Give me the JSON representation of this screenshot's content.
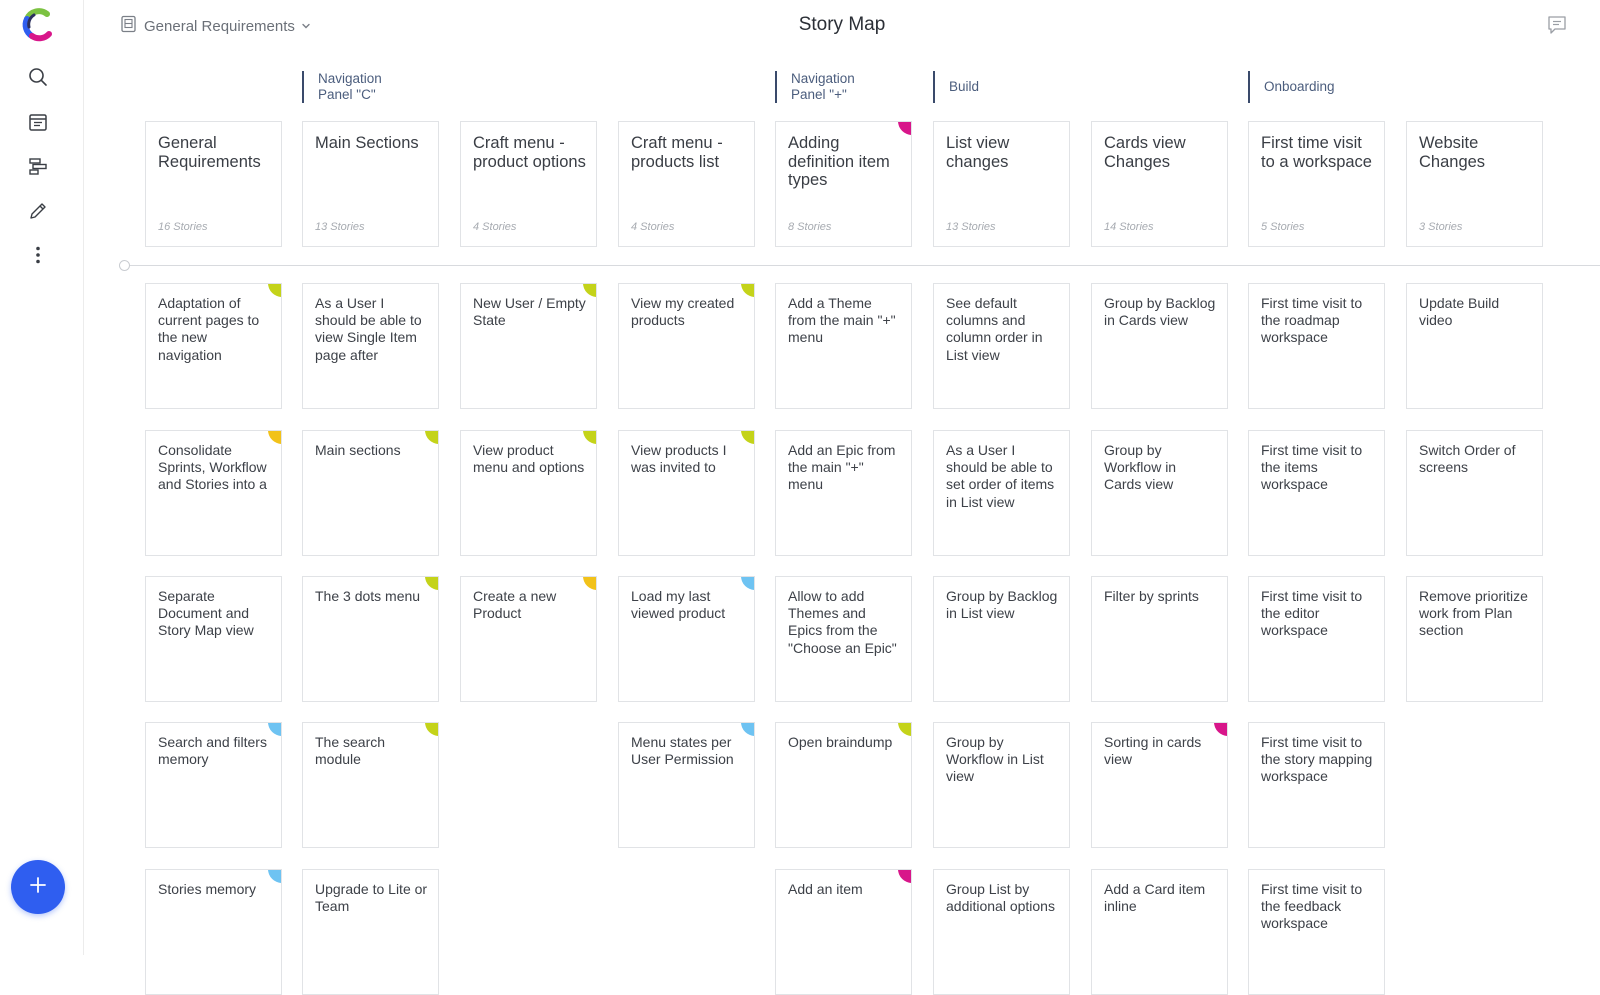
{
  "colors": {
    "yellowgreen": "#c4d31a",
    "yellow": "#f2c21a",
    "blue": "#6ec3f2",
    "magenta": "#d8168a"
  },
  "header": {
    "breadcrumb_label": "General Requirements",
    "title": "Story Map"
  },
  "sidebar": {
    "icons": [
      "search-icon",
      "calendar-icon",
      "roadmap-icon",
      "pencil-icon",
      "more-icon"
    ],
    "fab_icon": "plus-icon"
  },
  "releases": [
    {
      "label": "Navigation\nPanel \"C\""
    },
    {
      "label": "Navigation\nPanel \"+\""
    },
    {
      "label": "Build"
    },
    {
      "label": "Onboarding"
    }
  ],
  "epics": [
    {
      "title": "General Requirements",
      "count": "16 Stories",
      "flag": ""
    },
    {
      "title": "Main Sections",
      "count": "13 Stories",
      "flag": ""
    },
    {
      "title": "Craft menu - product options",
      "count": "4 Stories",
      "flag": ""
    },
    {
      "title": "Craft menu - products list",
      "count": "4 Stories",
      "flag": ""
    },
    {
      "title": "Adding definition item types",
      "count": "8 Stories",
      "flag": "magenta"
    },
    {
      "title": "List view changes",
      "count": "13 Stories",
      "flag": ""
    },
    {
      "title": "Cards view Changes",
      "count": "14 Stories",
      "flag": ""
    },
    {
      "title": "First time visit to a workspace",
      "count": "5 Stories",
      "flag": ""
    },
    {
      "title": "Website Changes",
      "count": "3 Stories",
      "flag": ""
    }
  ],
  "columns": [
    [
      {
        "title": "Adaptation of current pages to the new navigation",
        "flag": "yellowgreen"
      },
      {
        "title": "Consolidate Sprints, Workflow and Stories into a",
        "flag": "yellow"
      },
      {
        "title": "Separate Document and Story Map view",
        "flag": ""
      },
      {
        "title": "Search and filters memory",
        "flag": "blue"
      },
      {
        "title": "Stories memory",
        "flag": "blue"
      }
    ],
    [
      {
        "title": "As a User I should be able to view Single Item page after",
        "flag": ""
      },
      {
        "title": "Main sections",
        "flag": "yellowgreen"
      },
      {
        "title": "The 3 dots menu",
        "flag": "yellowgreen"
      },
      {
        "title": "The search module",
        "flag": "yellowgreen"
      },
      {
        "title": "Upgrade to Lite or Team",
        "flag": ""
      }
    ],
    [
      {
        "title": "New User / Empty State",
        "flag": "yellowgreen"
      },
      {
        "title": "View product menu and options",
        "flag": "yellowgreen"
      },
      {
        "title": "Create a new Product",
        "flag": "yellow"
      }
    ],
    [
      {
        "title": "View my created products",
        "flag": "yellowgreen"
      },
      {
        "title": "View products I was invited to",
        "flag": "yellowgreen"
      },
      {
        "title": "Load my last viewed product",
        "flag": "blue"
      },
      {
        "title": "Menu states per User Permission",
        "flag": "blue"
      }
    ],
    [
      {
        "title": "Add a Theme from the main \"+\" menu",
        "flag": ""
      },
      {
        "title": "Add an Epic from the main \"+\" menu",
        "flag": ""
      },
      {
        "title": "Allow to add Themes and Epics from the \"Choose an Epic\"",
        "flag": ""
      },
      {
        "title": "Open braindump",
        "flag": "yellowgreen"
      },
      {
        "title": "Add an item",
        "flag": "magenta"
      }
    ],
    [
      {
        "title": "See default columns and column order in List view",
        "flag": ""
      },
      {
        "title": "As a User I should be able to set order of items in List view",
        "flag": ""
      },
      {
        "title": "Group by Backlog in List view",
        "flag": ""
      },
      {
        "title": "Group by Workflow in List view",
        "flag": ""
      },
      {
        "title": "Group List by additional options",
        "flag": ""
      }
    ],
    [
      {
        "title": "Group by Backlog in Cards view",
        "flag": ""
      },
      {
        "title": "Group by Workflow in Cards view",
        "flag": ""
      },
      {
        "title": "Filter by sprints",
        "flag": ""
      },
      {
        "title": "Sorting in cards view",
        "flag": "magenta"
      },
      {
        "title": "Add a Card item inline",
        "flag": ""
      }
    ],
    [
      {
        "title": "First time visit to the roadmap workspace",
        "flag": ""
      },
      {
        "title": "First time visit to the items workspace",
        "flag": ""
      },
      {
        "title": "First time visit to the editor workspace",
        "flag": ""
      },
      {
        "title": "First time visit to the story mapping workspace",
        "flag": ""
      },
      {
        "title": "First time visit to the feedback workspace",
        "flag": ""
      }
    ],
    [
      {
        "title": "Update Build video",
        "flag": ""
      },
      {
        "title": "Switch Order of screens",
        "flag": ""
      },
      {
        "title": "Remove prioritize work from Plan section",
        "flag": ""
      }
    ]
  ]
}
